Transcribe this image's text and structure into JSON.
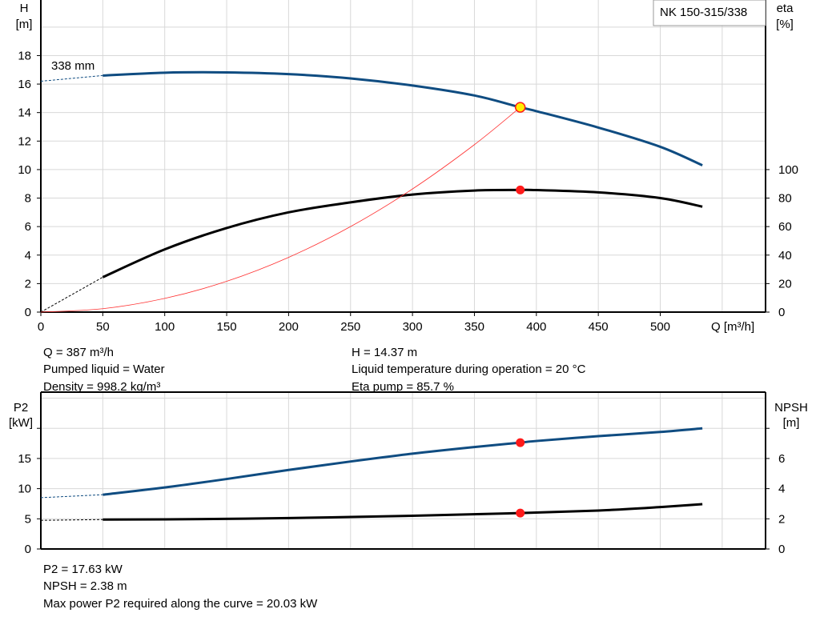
{
  "title": "NK 150-315/338",
  "colors": {
    "head": "#0f4c81",
    "eta": "#000000",
    "system": "#ff3030",
    "point_fill": "#ff1a1a",
    "duty_point_fill": "#ffee00",
    "grid": "#d8d8d8"
  },
  "chart_data": [
    {
      "type": "line",
      "xlabel": "Q [m³/h]",
      "ylabel_left": [
        "H",
        "[m]"
      ],
      "ylabel_right": [
        "eta",
        "[%]"
      ],
      "xlim": [
        0,
        585
      ],
      "ylim_left": [
        0,
        21.9
      ],
      "ylim_right_ticks": [
        0,
        20,
        40,
        60,
        80,
        100
      ],
      "x_ticks": [
        0,
        50,
        100,
        150,
        200,
        250,
        300,
        350,
        400,
        450,
        500
      ],
      "y_ticks_left": [
        0,
        2,
        4,
        6,
        8,
        10,
        12,
        14,
        16,
        18
      ],
      "grid": true,
      "curve_label": "338 mm",
      "series": [
        {
          "key": "head",
          "axis": "left",
          "extrapolated": [
            [
              0,
              16.2
            ],
            [
              50,
              16.6
            ]
          ],
          "points": [
            [
              50,
              16.6
            ],
            [
              100,
              16.8
            ],
            [
              150,
              16.82
            ],
            [
              200,
              16.7
            ],
            [
              250,
              16.4
            ],
            [
              300,
              15.9
            ],
            [
              350,
              15.2
            ],
            [
              387,
              14.37
            ],
            [
              400,
              14.1
            ],
            [
              450,
              12.95
            ],
            [
              500,
              11.6
            ],
            [
              534,
              10.3
            ]
          ]
        },
        {
          "key": "eta",
          "axis": "right",
          "extrapolated": [
            [
              0,
              0
            ],
            [
              50,
              24.5
            ]
          ],
          "points": [
            [
              50,
              24.5
            ],
            [
              100,
              44
            ],
            [
              150,
              59
            ],
            [
              200,
              70
            ],
            [
              250,
              77
            ],
            [
              300,
              82.5
            ],
            [
              350,
              85.3
            ],
            [
              387,
              85.7
            ],
            [
              400,
              85.6
            ],
            [
              450,
              84
            ],
            [
              500,
              80
            ],
            [
              534,
              74
            ]
          ]
        },
        {
          "key": "system",
          "axis": "left",
          "points": [
            [
              0,
              0
            ],
            [
              50,
              0.24
            ],
            [
              100,
              0.96
            ],
            [
              150,
              2.16
            ],
            [
              200,
              3.84
            ],
            [
              250,
              6.0
            ],
            [
              300,
              8.64
            ],
            [
              350,
              11.75
            ],
            [
              387,
              14.37
            ]
          ]
        }
      ],
      "markers": [
        {
          "series": "head",
          "x": 387,
          "y": 14.37,
          "style": "duty"
        },
        {
          "series": "eta",
          "x": 387,
          "y": 85.7,
          "style": "red"
        }
      ]
    },
    {
      "type": "line",
      "xlim": [
        0,
        585
      ],
      "ylabel_left": [
        "P2",
        "[kW]"
      ],
      "ylabel_right": [
        "NPSH",
        "[m]"
      ],
      "ylim_left": [
        0,
        26
      ],
      "y_ticks_left": [
        0,
        5,
        10,
        15
      ],
      "y_ticks_right": [
        0,
        2,
        4,
        6
      ],
      "grid": true,
      "series": [
        {
          "key": "p2",
          "axis": "left",
          "extrapolated": [
            [
              0,
              8.5
            ],
            [
              50,
              9.0
            ]
          ],
          "points": [
            [
              50,
              9.0
            ],
            [
              100,
              10.2
            ],
            [
              150,
              11.6
            ],
            [
              200,
              13.1
            ],
            [
              250,
              14.5
            ],
            [
              300,
              15.8
            ],
            [
              350,
              16.9
            ],
            [
              387,
              17.63
            ],
            [
              400,
              17.9
            ],
            [
              450,
              18.7
            ],
            [
              500,
              19.4
            ],
            [
              534,
              20.0
            ]
          ]
        },
        {
          "key": "npsh",
          "axis": "right",
          "extrapolated": [
            [
              0,
              1.9
            ],
            [
              50,
              1.95
            ]
          ],
          "points": [
            [
              50,
              1.95
            ],
            [
              100,
              1.96
            ],
            [
              200,
              2.05
            ],
            [
              300,
              2.2
            ],
            [
              387,
              2.38
            ],
            [
              450,
              2.55
            ],
            [
              500,
              2.78
            ],
            [
              534,
              2.97
            ]
          ]
        }
      ],
      "markers": [
        {
          "series": "p2",
          "x": 387,
          "y": 17.63,
          "style": "red"
        },
        {
          "series": "npsh",
          "x": 387,
          "y": 2.38,
          "style": "red"
        }
      ]
    }
  ],
  "info_top": {
    "left": [
      "Q = 387 m³/h",
      "Pumped liquid = Water",
      "Density = 998.2 kg/m³"
    ],
    "right": [
      "H = 14.37 m",
      "Liquid temperature during operation = 20 °C",
      "Eta pump = 85.7 %"
    ]
  },
  "info_bottom": [
    "P2 = 17.63 kW",
    "NPSH = 2.38 m",
    "Max power P2 required along the curve = 20.03 kW"
  ]
}
